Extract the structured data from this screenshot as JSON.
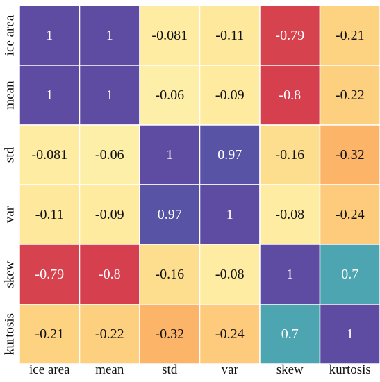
{
  "chart_data": {
    "type": "heatmap",
    "title": "",
    "xlabel": "",
    "ylabel": "",
    "x_categories": [
      "ice area",
      "mean",
      "std",
      "var",
      "skew",
      "kurtosis"
    ],
    "y_categories": [
      "ice area",
      "mean",
      "std",
      "var",
      "skew",
      "kurtosis"
    ],
    "values": [
      [
        1,
        1,
        -0.081,
        -0.11,
        -0.79,
        -0.21
      ],
      [
        1,
        1,
        -0.06,
        -0.09,
        -0.8,
        -0.22
      ],
      [
        -0.081,
        -0.06,
        1,
        0.97,
        -0.16,
        -0.32
      ],
      [
        -0.11,
        -0.09,
        0.97,
        1,
        -0.08,
        -0.24
      ],
      [
        -0.79,
        -0.8,
        -0.16,
        -0.08,
        1,
        0.7
      ],
      [
        -0.21,
        -0.22,
        -0.32,
        -0.24,
        0.7,
        1
      ]
    ],
    "labels": [
      [
        "1",
        "1",
        "-0.081",
        "-0.11",
        "-0.79",
        "-0.21"
      ],
      [
        "1",
        "1",
        "-0.06",
        "-0.09",
        "-0.8",
        "-0.22"
      ],
      [
        "-0.081",
        "-0.06",
        "1",
        "0.97",
        "-0.16",
        "-0.32"
      ],
      [
        "-0.11",
        "-0.09",
        "0.97",
        "1",
        "-0.08",
        "-0.24"
      ],
      [
        "-0.79",
        "-0.8",
        "-0.16",
        "-0.08",
        "1",
        "0.7"
      ],
      [
        "-0.21",
        "-0.22",
        "-0.32",
        "-0.24",
        "0.7",
        "1"
      ]
    ],
    "colormap": "Spectral",
    "value_range": [
      -0.8,
      1
    ],
    "legend": "none",
    "grid": false,
    "colors": {
      "cell_border": "#ffffff",
      "text_dark": "#111111",
      "text_light": "#ffffff"
    }
  }
}
